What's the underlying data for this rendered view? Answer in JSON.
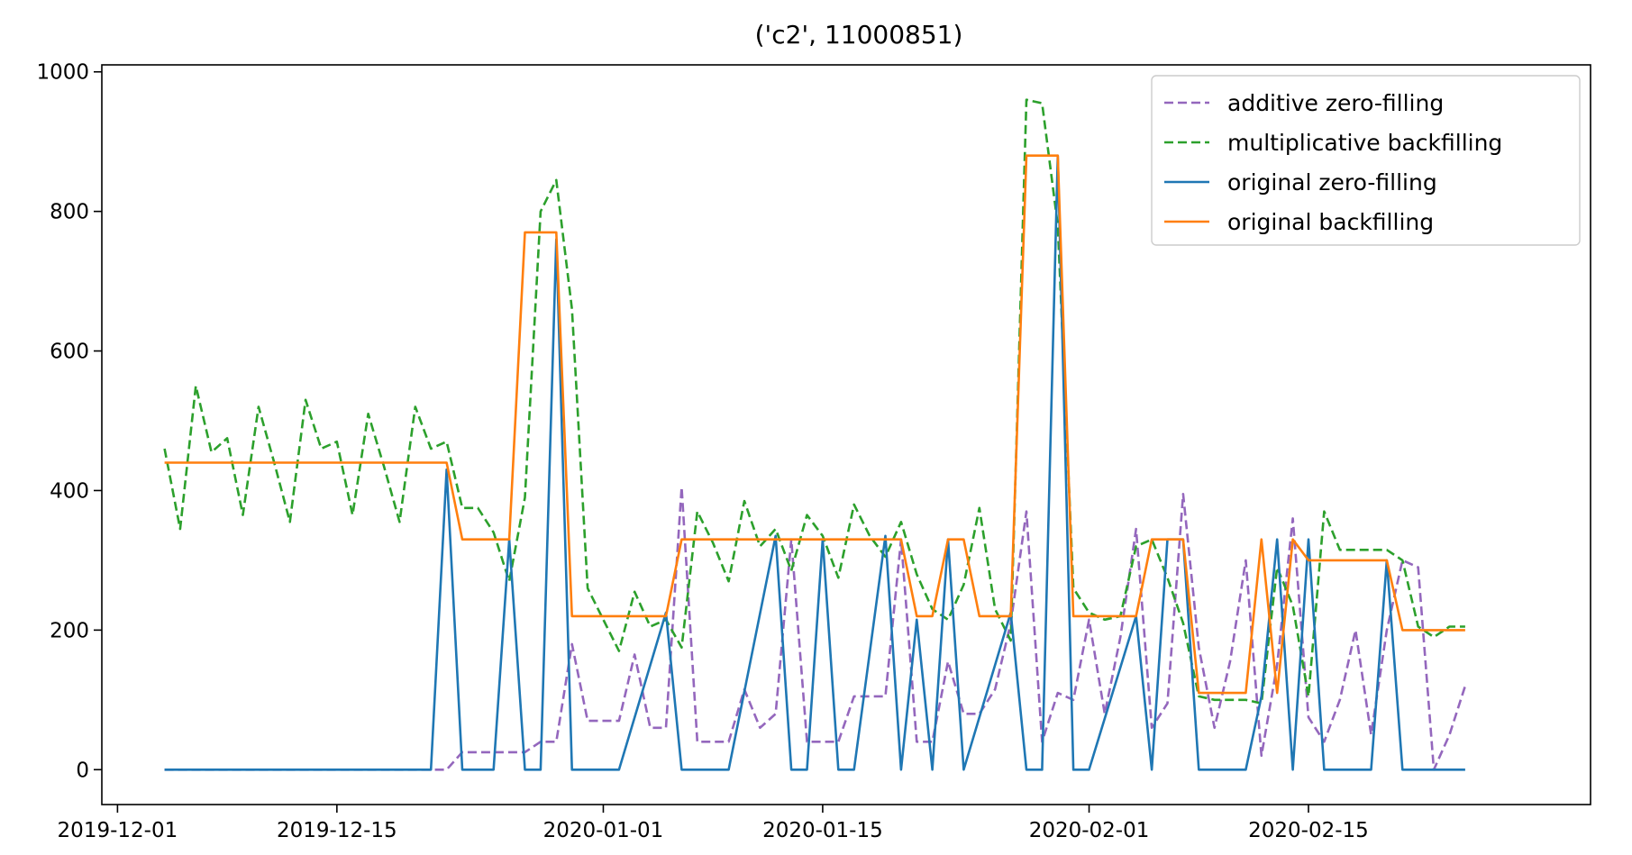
{
  "chart_data": {
    "type": "line",
    "title": "('c2', 11000851)",
    "xlabel": "",
    "ylabel": "",
    "xlim": [
      "2019-11-30",
      "2020-03-04"
    ],
    "ylim": [
      -50,
      1010
    ],
    "x_ticks": [
      "2019-12-01",
      "2019-12-15",
      "2020-01-01",
      "2020-01-15",
      "2020-02-01",
      "2020-02-15"
    ],
    "y_ticks": [
      0,
      200,
      400,
      600,
      800,
      1000
    ],
    "grid": false,
    "legend_position": "top-right",
    "x_start": "2019-12-04",
    "series": [
      {
        "name": "additive zero-filling",
        "color": "#9467bd",
        "style": "dashed",
        "values": [
          0,
          0,
          0,
          0,
          0,
          0,
          0,
          0,
          0,
          0,
          0,
          0,
          0,
          0,
          0,
          0,
          0,
          0,
          0,
          25,
          25,
          25,
          25,
          25,
          40,
          40,
          180,
          70,
          70,
          70,
          165,
          60,
          60,
          405,
          40,
          40,
          40,
          115,
          60,
          80,
          330,
          40,
          40,
          40,
          105,
          105,
          105,
          330,
          40,
          40,
          155,
          80,
          80,
          115,
          210,
          370,
          40,
          110,
          100,
          215,
          80,
          190,
          345,
          60,
          95,
          395,
          175,
          60,
          155,
          300,
          20,
          150,
          360,
          75,
          40,
          100,
          200,
          50,
          200,
          300,
          290,
          0,
          50,
          120
        ]
      },
      {
        "name": "multiplicative backfilling",
        "color": "#2ca02c",
        "style": "dashed",
        "values": [
          460,
          345,
          550,
          455,
          475,
          365,
          520,
          440,
          355,
          530,
          460,
          470,
          365,
          510,
          435,
          355,
          520,
          460,
          470,
          375,
          375,
          340,
          270,
          390,
          800,
          845,
          660,
          260,
          215,
          170,
          255,
          205,
          215,
          175,
          370,
          325,
          270,
          385,
          320,
          345,
          285,
          365,
          335,
          275,
          380,
          335,
          305,
          355,
          280,
          230,
          215,
          265,
          375,
          230,
          185,
          960,
          955,
          780,
          260,
          225,
          215,
          220,
          320,
          330,
          275,
          210,
          105,
          100,
          100,
          100,
          95,
          290,
          235,
          105,
          370,
          315,
          315,
          315,
          315,
          300,
          205,
          190,
          205,
          205
        ]
      },
      {
        "name": "original zero-filling",
        "color": "#1f77b4",
        "style": "solid",
        "values": [
          0,
          0,
          0,
          0,
          0,
          0,
          0,
          0,
          0,
          0,
          0,
          0,
          0,
          0,
          0,
          0,
          0,
          0,
          430,
          0,
          0,
          0,
          330,
          0,
          0,
          760,
          0,
          0,
          0,
          0,
          null,
          null,
          null,
          null,
          null,
          null,
          null,
          null,
          null,
          null,
          null,
          null,
          null,
          null,
          null,
          null,
          null,
          null,
          null,
          null,
          null,
          null,
          null,
          null,
          null,
          null,
          null,
          null,
          null,
          null,
          null,
          null,
          null,
          null,
          null,
          null,
          null,
          null,
          null,
          null,
          null,
          null,
          null,
          null,
          null,
          null,
          null,
          null,
          null,
          null,
          null,
          null,
          null,
          null
        ],
        "points": [
          [
            "2019-12-04",
            0
          ],
          [
            "2019-12-21",
            0
          ],
          [
            "2019-12-22",
            430
          ],
          [
            "2019-12-23",
            0
          ],
          [
            "2019-12-25",
            0
          ],
          [
            "2019-12-26",
            330
          ],
          [
            "2019-12-27",
            0
          ],
          [
            "2019-12-28",
            0
          ],
          [
            "2019-12-29",
            760
          ],
          [
            "2019-12-30",
            0
          ],
          [
            "2020-01-02",
            0
          ],
          [
            "2020-01-05",
            225
          ],
          [
            "2020-01-06",
            0
          ],
          [
            "2020-01-09",
            0
          ],
          [
            "2020-01-12",
            335
          ],
          [
            "2020-01-13",
            0
          ],
          [
            "2020-01-14",
            0
          ],
          [
            "2020-01-15",
            330
          ],
          [
            "2020-01-16",
            0
          ],
          [
            "2020-01-17",
            0
          ],
          [
            "2020-01-19",
            335
          ],
          [
            "2020-01-20",
            0
          ],
          [
            "2020-01-21",
            215
          ],
          [
            "2020-01-22",
            0
          ],
          [
            "2020-01-23",
            330
          ],
          [
            "2020-01-24",
            0
          ],
          [
            "2020-01-27",
            225
          ],
          [
            "2020-01-28",
            0
          ],
          [
            "2020-01-29",
            0
          ],
          [
            "2020-01-30",
            880
          ],
          [
            "2020-01-31",
            0
          ],
          [
            "2020-02-01",
            0
          ],
          [
            "2020-02-04",
            220
          ],
          [
            "2020-02-05",
            0
          ],
          [
            "2020-02-06",
            330
          ],
          [
            "2020-02-07",
            330
          ],
          [
            "2020-02-08",
            0
          ],
          [
            "2020-02-11",
            0
          ],
          [
            "2020-02-12",
            105
          ],
          [
            "2020-02-13",
            330
          ],
          [
            "2020-02-14",
            0
          ],
          [
            "2020-02-15",
            330
          ],
          [
            "2020-02-16",
            0
          ],
          [
            "2020-02-19",
            0
          ],
          [
            "2020-02-20",
            300
          ],
          [
            "2020-02-21",
            0
          ],
          [
            "2020-02-25",
            0
          ]
        ]
      },
      {
        "name": "original backfilling",
        "color": "#ff7f0e",
        "style": "solid",
        "points": [
          [
            "2019-12-04",
            440
          ],
          [
            "2019-12-22",
            440
          ],
          [
            "2019-12-23",
            330
          ],
          [
            "2019-12-26",
            330
          ],
          [
            "2019-12-27",
            770
          ],
          [
            "2019-12-29",
            770
          ],
          [
            "2019-12-30",
            220
          ],
          [
            "2020-01-05",
            220
          ],
          [
            "2020-01-06",
            330
          ],
          [
            "2020-01-20",
            330
          ],
          [
            "2020-01-21",
            220
          ],
          [
            "2020-01-22",
            220
          ],
          [
            "2020-01-23",
            330
          ],
          [
            "2020-01-24",
            330
          ],
          [
            "2020-01-25",
            220
          ],
          [
            "2020-01-27",
            220
          ],
          [
            "2020-01-28",
            880
          ],
          [
            "2020-01-30",
            880
          ],
          [
            "2020-01-31",
            220
          ],
          [
            "2020-02-03",
            220
          ],
          [
            "2020-02-04",
            220
          ],
          [
            "2020-02-05",
            330
          ],
          [
            "2020-02-07",
            330
          ],
          [
            "2020-02-08",
            110
          ],
          [
            "2020-02-11",
            110
          ],
          [
            "2020-02-12",
            330
          ],
          [
            "2020-02-13",
            110
          ],
          [
            "2020-02-14",
            330
          ],
          [
            "2020-02-15",
            300
          ],
          [
            "2020-02-20",
            300
          ],
          [
            "2020-02-21",
            200
          ],
          [
            "2020-02-25",
            200
          ]
        ]
      }
    ]
  }
}
